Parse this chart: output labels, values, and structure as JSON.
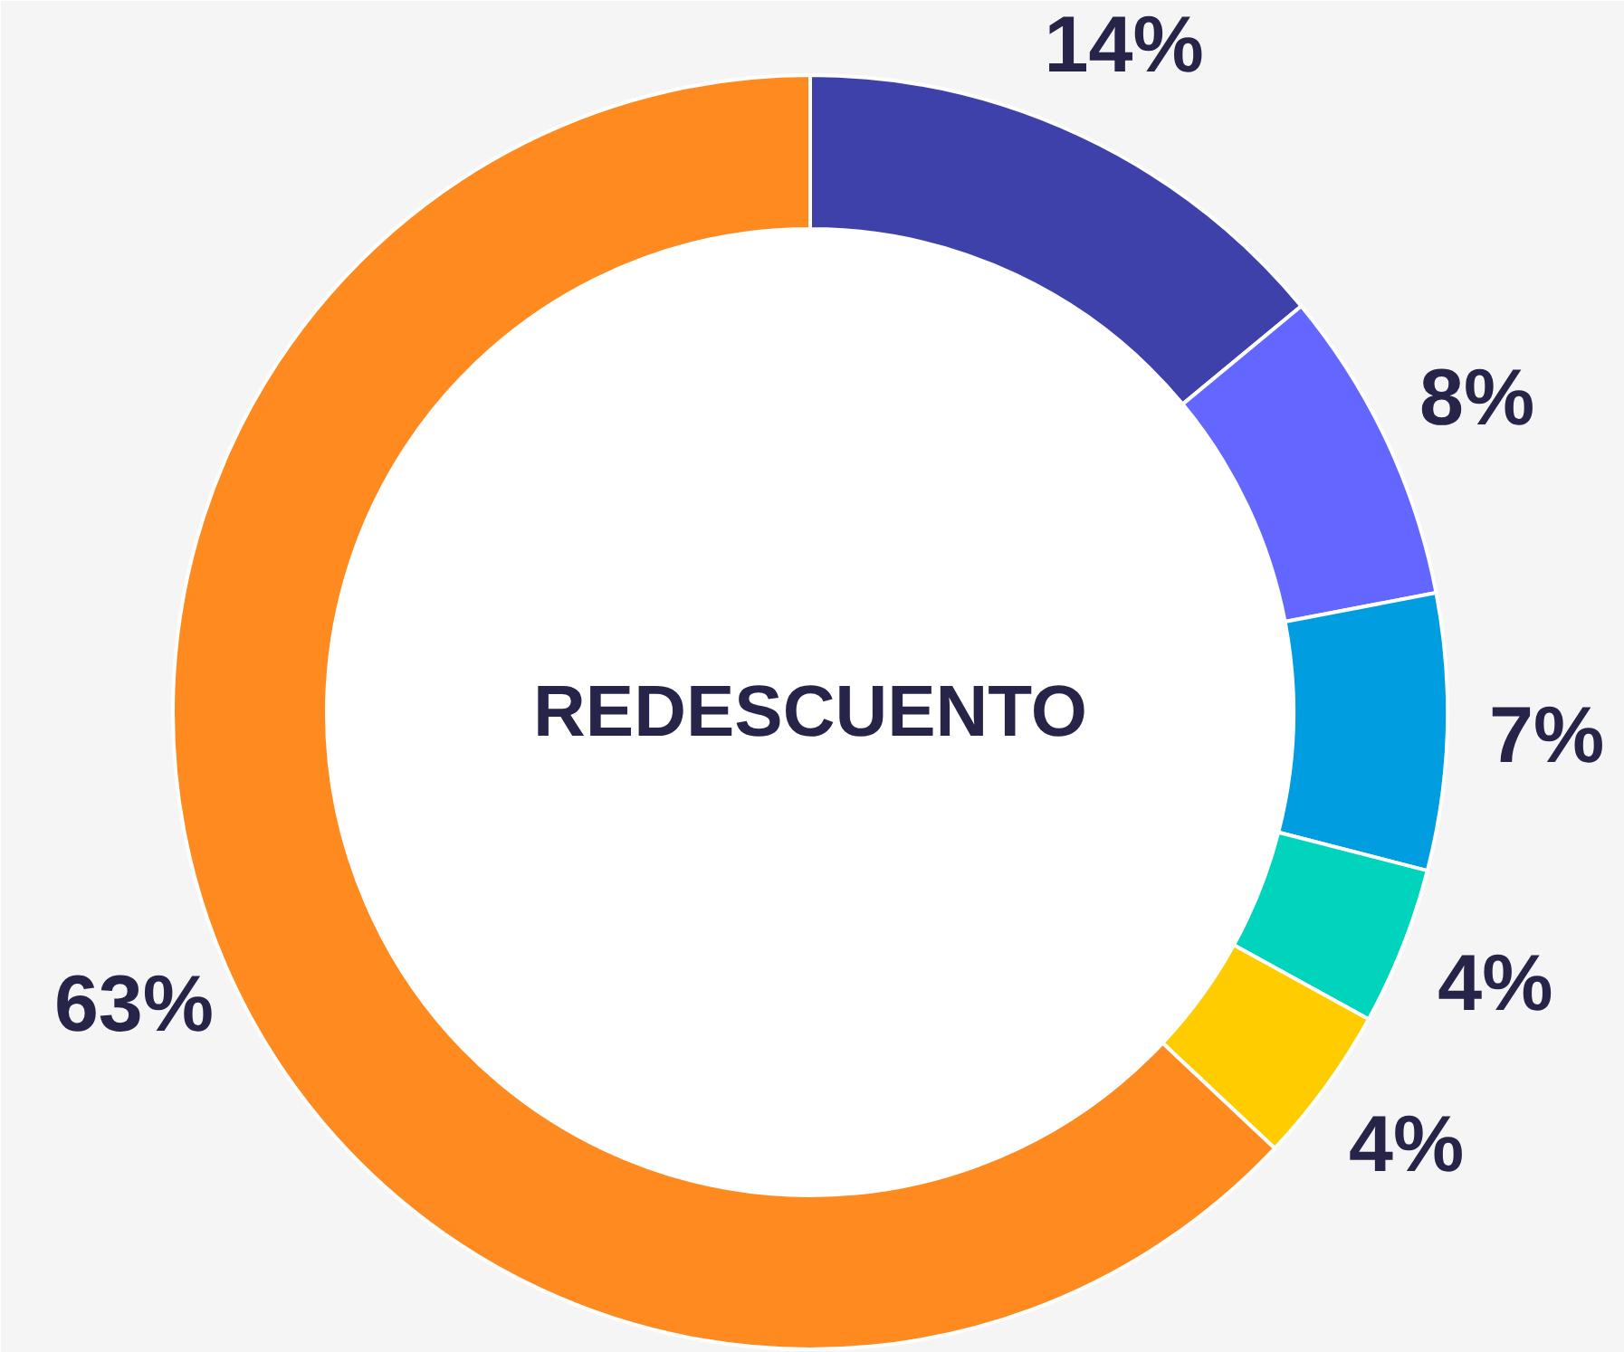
{
  "chart_data": {
    "type": "donut",
    "title": "REDESCUENTO",
    "categories": [
      null,
      null,
      null,
      null,
      null,
      null
    ],
    "values": [
      14,
      8,
      7,
      4,
      4,
      63
    ],
    "colors": [
      "#3f41ab",
      "#6366ff",
      "#009de0",
      "#00d4bc",
      "#ffcc00",
      "#ff8a1f"
    ],
    "value_labels": [
      "14%",
      "8%",
      "7%",
      "4%",
      "4%",
      "63%"
    ]
  }
}
